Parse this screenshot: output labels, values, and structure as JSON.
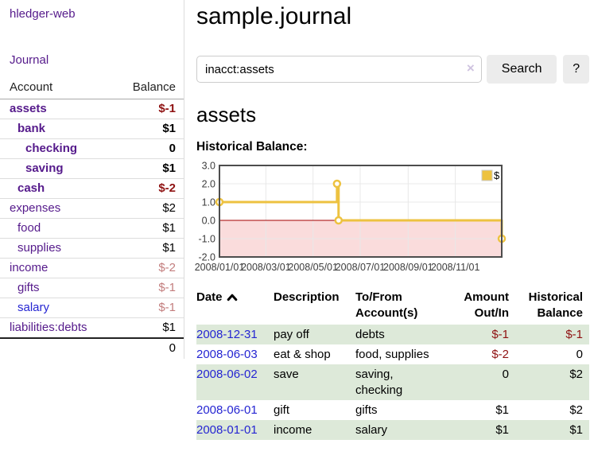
{
  "app": {
    "title": "hledger-web"
  },
  "colors": {
    "purple": "#551a8b",
    "blue": "#2525d2",
    "negative": "#8f1212",
    "negative_soft": "#c27d7d",
    "row_green": "#dde9d9",
    "accent_gold": "#edc240"
  },
  "sidebar": {
    "journal_label": "Journal",
    "accounts_table": {
      "headers": [
        "Account",
        "Balance"
      ],
      "rows": [
        {
          "name": "assets",
          "balance": "$-1",
          "indent": 1,
          "bold": true,
          "neg": "strong"
        },
        {
          "name": "bank",
          "balance": "$1",
          "indent": 2,
          "bold": true
        },
        {
          "name": "checking",
          "balance": "0",
          "indent": 3,
          "bold": true
        },
        {
          "name": "saving",
          "balance": "$1",
          "indent": 3,
          "bold": true
        },
        {
          "name": "cash",
          "balance": "$-2",
          "indent": 2,
          "bold": true,
          "neg": "strong"
        },
        {
          "name": "expenses",
          "balance": "$2",
          "indent": 1
        },
        {
          "name": "food",
          "balance": "$1",
          "indent": 2
        },
        {
          "name": "supplies",
          "balance": "$1",
          "indent": 2
        },
        {
          "name": "income",
          "balance": "$-2",
          "indent": 1,
          "neg": "soft"
        },
        {
          "name": "gifts",
          "balance": "$-1",
          "indent": 2,
          "neg": "soft"
        },
        {
          "name": "salary",
          "balance": "$-1",
          "indent": 2,
          "neg": "soft",
          "link": "blue"
        },
        {
          "name": "liabilities:debts",
          "balance": "$1",
          "indent": 1
        }
      ],
      "total": "0"
    }
  },
  "main": {
    "title": "sample.journal",
    "search": {
      "value": "inacct:assets",
      "clear_icon": "×",
      "search_label": "Search",
      "help_label": "?"
    },
    "account_heading": "assets",
    "register_table": {
      "headers": [
        {
          "lines": [
            "Date"
          ],
          "sort": "asc"
        },
        {
          "lines": [
            "Description"
          ]
        },
        {
          "lines": [
            "To/From",
            "Account(s)"
          ]
        },
        {
          "lines": [
            "Amount",
            "Out/In"
          ],
          "align": "right"
        },
        {
          "lines": [
            "Historical",
            "Balance"
          ],
          "align": "right"
        }
      ],
      "rows": [
        {
          "date": "2008-12-31",
          "description": "pay off",
          "accounts": "debts",
          "amount": "$-1",
          "balance": "$-1",
          "amount_neg": true,
          "balance_neg": true
        },
        {
          "date": "2008-06-03",
          "description": "eat & shop",
          "accounts": "food, supplies",
          "amount": "$-2",
          "balance": "0",
          "amount_neg": true
        },
        {
          "date": "2008-06-02",
          "description": "save",
          "accounts": "saving, checking",
          "amount": "0",
          "balance": "$2"
        },
        {
          "date": "2008-06-01",
          "description": "gift",
          "accounts": "gifts",
          "amount": "$1",
          "balance": "$2"
        },
        {
          "date": "2008-01-01",
          "description": "income",
          "accounts": "salary",
          "amount": "$1",
          "balance": "$1"
        }
      ]
    }
  },
  "chart_data": {
    "type": "line",
    "title": "Historical Balance:",
    "step": true,
    "legend": [
      {
        "label": "$",
        "color": "#edc240"
      }
    ],
    "legend_position": "top-right",
    "x_start_date": "2008-01-01",
    "x_span_days": 365,
    "points": [
      {
        "date": "2008-01-01",
        "value": 1
      },
      {
        "date": "2008-06-01",
        "value": 2
      },
      {
        "date": "2008-06-03",
        "value": 0
      },
      {
        "date": "2008-12-31",
        "value": -1
      }
    ],
    "ylim": [
      -2,
      3
    ],
    "y_ticks": [
      {
        "label": "3.0",
        "value": 3
      },
      {
        "label": "2.0",
        "value": 2
      },
      {
        "label": "1.0",
        "value": 1
      },
      {
        "label": "0.0",
        "value": 0
      },
      {
        "label": "-1.0",
        "value": -1
      },
      {
        "label": "-2.0",
        "value": -2
      }
    ],
    "x_ticks": [
      {
        "label": "2008/01/01",
        "day": 0
      },
      {
        "label": "2008/03/01",
        "day": 60
      },
      {
        "label": "2008/05/01",
        "day": 121
      },
      {
        "label": "2008/07/01",
        "day": 182
      },
      {
        "label": "2008/09/01",
        "day": 244
      },
      {
        "label": "2008/11/01",
        "day": 305
      }
    ],
    "grid": true,
    "series_color": "#edc240",
    "marker_fill": "#ffffff",
    "negative_region_fill": "#fadcdc",
    "zero_line_color": "#a40000",
    "grid_color": "#e8e8e8",
    "border_color": "#4d4d4d",
    "tick_label_color": "#3c3c3c"
  }
}
